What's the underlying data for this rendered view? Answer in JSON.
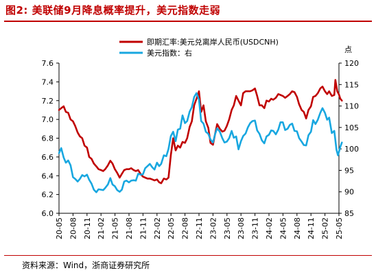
{
  "title": "图2:   美联储9月降息概率提升，美元指数走弱",
  "source": "资料来源：Wind，浙商证券研究所",
  "chart_data": {
    "type": "line",
    "x_tick_labels": [
      "20-05",
      "20-08",
      "20-11",
      "21-02",
      "21-05",
      "21-08",
      "21-11",
      "22-02",
      "22-05",
      "22-08",
      "22-11",
      "23-02",
      "23-05",
      "23-08",
      "23-11",
      "24-02",
      "24-05",
      "24-08",
      "24-11",
      "25-02",
      "25-05"
    ],
    "x_range": [
      "2020-05",
      "2025-05"
    ],
    "ylim_left": [
      6.0,
      7.6
    ],
    "ylim_right": [
      85,
      120
    ],
    "yticks_left": [
      "6.0",
      "6.2",
      "6.4",
      "6.6",
      "6.8",
      "7.0",
      "7.2",
      "7.4",
      "7.6"
    ],
    "yticks_right": [
      "85",
      "90",
      "95",
      "100",
      "105",
      "110",
      "115",
      "120"
    ],
    "right_axis_unit": "点",
    "legend_position": "top-center",
    "grid": false,
    "series": [
      {
        "name": "即期汇率:美元兑离岸人民币(USDCNH)",
        "axis": "left",
        "color": "#c00000",
        "points": [
          [
            "2020-05-01",
            7.1
          ],
          [
            "2020-05-15",
            7.12
          ],
          [
            "2020-05-31",
            7.14
          ],
          [
            "2020-06-15",
            7.08
          ],
          [
            "2020-06-30",
            7.07
          ],
          [
            "2020-07-15",
            7.0
          ],
          [
            "2020-07-31",
            6.98
          ],
          [
            "2020-08-15",
            6.93
          ],
          [
            "2020-08-31",
            6.86
          ],
          [
            "2020-09-15",
            6.82
          ],
          [
            "2020-09-30",
            6.8
          ],
          [
            "2020-10-15",
            6.72
          ],
          [
            "2020-10-31",
            6.7
          ],
          [
            "2020-11-15",
            6.6
          ],
          [
            "2020-11-30",
            6.58
          ],
          [
            "2020-12-15",
            6.53
          ],
          [
            "2020-12-31",
            6.5
          ],
          [
            "2021-01-15",
            6.47
          ],
          [
            "2021-01-31",
            6.46
          ],
          [
            "2021-02-15",
            6.45
          ],
          [
            "2021-02-28",
            6.47
          ],
          [
            "2021-03-15",
            6.51
          ],
          [
            "2021-03-31",
            6.56
          ],
          [
            "2021-04-15",
            6.53
          ],
          [
            "2021-04-30",
            6.47
          ],
          [
            "2021-05-15",
            6.43
          ],
          [
            "2021-05-31",
            6.38
          ],
          [
            "2021-06-15",
            6.42
          ],
          [
            "2021-06-30",
            6.46
          ],
          [
            "2021-07-15",
            6.47
          ],
          [
            "2021-07-31",
            6.47
          ],
          [
            "2021-08-15",
            6.48
          ],
          [
            "2021-08-31",
            6.46
          ],
          [
            "2021-09-15",
            6.45
          ],
          [
            "2021-09-30",
            6.46
          ],
          [
            "2021-10-15",
            6.42
          ],
          [
            "2021-10-31",
            6.39
          ],
          [
            "2021-11-15",
            6.38
          ],
          [
            "2021-11-30",
            6.37
          ],
          [
            "2021-12-15",
            6.37
          ],
          [
            "2021-12-31",
            6.36
          ],
          [
            "2022-01-15",
            6.35
          ],
          [
            "2022-01-31",
            6.36
          ],
          [
            "2022-02-15",
            6.33
          ],
          [
            "2022-02-28",
            6.32
          ],
          [
            "2022-03-15",
            6.37
          ],
          [
            "2022-03-31",
            6.36
          ],
          [
            "2022-04-15",
            6.38
          ],
          [
            "2022-04-30",
            6.62
          ],
          [
            "2022-05-15",
            6.8
          ],
          [
            "2022-05-31",
            6.67
          ],
          [
            "2022-06-15",
            6.72
          ],
          [
            "2022-06-30",
            6.7
          ],
          [
            "2022-07-15",
            6.76
          ],
          [
            "2022-07-31",
            6.75
          ],
          [
            "2022-08-15",
            6.8
          ],
          [
            "2022-08-31",
            6.92
          ],
          [
            "2022-09-15",
            6.98
          ],
          [
            "2022-09-30",
            7.15
          ],
          [
            "2022-10-15",
            7.22
          ],
          [
            "2022-10-31",
            7.3
          ],
          [
            "2022-11-15",
            7.08
          ],
          [
            "2022-11-30",
            7.15
          ],
          [
            "2022-12-15",
            6.98
          ],
          [
            "2022-12-31",
            6.91
          ],
          [
            "2023-01-15",
            6.75
          ],
          [
            "2023-01-31",
            6.73
          ],
          [
            "2023-02-15",
            6.85
          ],
          [
            "2023-02-28",
            6.95
          ],
          [
            "2023-03-15",
            6.9
          ],
          [
            "2023-03-31",
            6.87
          ],
          [
            "2023-04-15",
            6.88
          ],
          [
            "2023-04-30",
            6.93
          ],
          [
            "2023-05-15",
            7.0
          ],
          [
            "2023-05-31",
            7.1
          ],
          [
            "2023-06-15",
            7.15
          ],
          [
            "2023-06-30",
            7.25
          ],
          [
            "2023-07-15",
            7.2
          ],
          [
            "2023-07-31",
            7.15
          ],
          [
            "2023-08-15",
            7.28
          ],
          [
            "2023-08-31",
            7.3
          ],
          [
            "2023-09-15",
            7.3
          ],
          [
            "2023-09-30",
            7.3
          ],
          [
            "2023-10-15",
            7.31
          ],
          [
            "2023-10-31",
            7.33
          ],
          [
            "2023-11-15",
            7.25
          ],
          [
            "2023-11-30",
            7.15
          ],
          [
            "2023-12-15",
            7.15
          ],
          [
            "2023-12-31",
            7.12
          ],
          [
            "2024-01-15",
            7.2
          ],
          [
            "2024-01-31",
            7.19
          ],
          [
            "2024-02-15",
            7.22
          ],
          [
            "2024-02-29",
            7.21
          ],
          [
            "2024-03-15",
            7.23
          ],
          [
            "2024-03-31",
            7.27
          ],
          [
            "2024-04-15",
            7.26
          ],
          [
            "2024-04-30",
            7.25
          ],
          [
            "2024-05-15",
            7.23
          ],
          [
            "2024-05-31",
            7.25
          ],
          [
            "2024-06-15",
            7.27
          ],
          [
            "2024-06-30",
            7.3
          ],
          [
            "2024-07-15",
            7.29
          ],
          [
            "2024-07-31",
            7.24
          ],
          [
            "2024-08-15",
            7.16
          ],
          [
            "2024-08-31",
            7.1
          ],
          [
            "2024-09-15",
            7.08
          ],
          [
            "2024-09-30",
            7.01
          ],
          [
            "2024-10-15",
            7.1
          ],
          [
            "2024-10-31",
            7.14
          ],
          [
            "2024-11-15",
            7.24
          ],
          [
            "2024-11-30",
            7.25
          ],
          [
            "2024-12-15",
            7.28
          ],
          [
            "2024-12-31",
            7.33
          ],
          [
            "2025-01-15",
            7.35
          ],
          [
            "2025-01-31",
            7.3
          ],
          [
            "2025-02-15",
            7.27
          ],
          [
            "2025-02-28",
            7.3
          ],
          [
            "2025-03-15",
            7.25
          ],
          [
            "2025-03-31",
            7.26
          ],
          [
            "2025-04-08",
            7.42
          ],
          [
            "2025-04-20",
            7.3
          ],
          [
            "2025-04-30",
            7.27
          ],
          [
            "2025-05-10",
            7.22
          ],
          [
            "2025-05-20",
            7.2
          ]
        ]
      },
      {
        "name": "美元指数：右",
        "axis": "right",
        "color": "#18a7e0",
        "points": [
          [
            "2020-05-01",
            99.0
          ],
          [
            "2020-05-15",
            100.2
          ],
          [
            "2020-05-31",
            98.0
          ],
          [
            "2020-06-15",
            96.8
          ],
          [
            "2020-06-30",
            97.3
          ],
          [
            "2020-07-15",
            96.2
          ],
          [
            "2020-07-31",
            93.4
          ],
          [
            "2020-08-15",
            93.0
          ],
          [
            "2020-08-31",
            92.4
          ],
          [
            "2020-09-15",
            93.0
          ],
          [
            "2020-09-30",
            93.9
          ],
          [
            "2020-10-15",
            93.6
          ],
          [
            "2020-10-31",
            94.0
          ],
          [
            "2020-11-15",
            92.8
          ],
          [
            "2020-11-30",
            91.9
          ],
          [
            "2020-12-15",
            90.5
          ],
          [
            "2020-12-31",
            89.9
          ],
          [
            "2021-01-15",
            90.6
          ],
          [
            "2021-01-31",
            90.5
          ],
          [
            "2021-02-15",
            90.4
          ],
          [
            "2021-02-28",
            90.9
          ],
          [
            "2021-03-15",
            91.7
          ],
          [
            "2021-03-31",
            93.2
          ],
          [
            "2021-04-15",
            91.7
          ],
          [
            "2021-04-30",
            91.3
          ],
          [
            "2021-05-15",
            90.4
          ],
          [
            "2021-05-31",
            90.0
          ],
          [
            "2021-06-15",
            90.5
          ],
          [
            "2021-06-30",
            92.4
          ],
          [
            "2021-07-15",
            92.6
          ],
          [
            "2021-07-31",
            92.2
          ],
          [
            "2021-08-15",
            92.6
          ],
          [
            "2021-08-31",
            92.7
          ],
          [
            "2021-09-15",
            92.6
          ],
          [
            "2021-09-30",
            94.2
          ],
          [
            "2021-10-15",
            94.0
          ],
          [
            "2021-10-31",
            94.1
          ],
          [
            "2021-11-15",
            95.5
          ],
          [
            "2021-11-30",
            96.0
          ],
          [
            "2021-12-15",
            96.5
          ],
          [
            "2021-12-31",
            95.7
          ],
          [
            "2022-01-15",
            95.2
          ],
          [
            "2022-01-31",
            96.8
          ],
          [
            "2022-02-15",
            96.0
          ],
          [
            "2022-02-28",
            96.5
          ],
          [
            "2022-03-15",
            98.5
          ],
          [
            "2022-03-31",
            98.3
          ],
          [
            "2022-04-15",
            100.0
          ],
          [
            "2022-04-30",
            103.0
          ],
          [
            "2022-05-15",
            104.0
          ],
          [
            "2022-05-31",
            101.8
          ],
          [
            "2022-06-15",
            104.5
          ],
          [
            "2022-06-30",
            104.7
          ],
          [
            "2022-07-15",
            107.8
          ],
          [
            "2022-07-31",
            106.0
          ],
          [
            "2022-08-15",
            106.5
          ],
          [
            "2022-08-31",
            108.7
          ],
          [
            "2022-09-15",
            109.7
          ],
          [
            "2022-09-30",
            112.1
          ],
          [
            "2022-10-15",
            113.0
          ],
          [
            "2022-10-31",
            111.5
          ],
          [
            "2022-11-15",
            106.5
          ],
          [
            "2022-11-30",
            105.9
          ],
          [
            "2022-12-15",
            104.0
          ],
          [
            "2022-12-31",
            103.5
          ],
          [
            "2023-01-15",
            102.2
          ],
          [
            "2023-01-31",
            101.5
          ],
          [
            "2023-02-15",
            103.5
          ],
          [
            "2023-02-28",
            104.8
          ],
          [
            "2023-03-15",
            104.0
          ],
          [
            "2023-03-31",
            102.5
          ],
          [
            "2023-04-15",
            101.5
          ],
          [
            "2023-04-30",
            101.7
          ],
          [
            "2023-05-15",
            102.5
          ],
          [
            "2023-05-31",
            104.2
          ],
          [
            "2023-06-15",
            102.6
          ],
          [
            "2023-06-30",
            102.9
          ],
          [
            "2023-07-15",
            99.9
          ],
          [
            "2023-07-31",
            101.8
          ],
          [
            "2023-08-15",
            103.0
          ],
          [
            "2023-08-31",
            103.6
          ],
          [
            "2023-09-15",
            105.0
          ],
          [
            "2023-09-30",
            106.0
          ],
          [
            "2023-10-15",
            106.5
          ],
          [
            "2023-10-31",
            106.6
          ],
          [
            "2023-11-15",
            104.3
          ],
          [
            "2023-11-30",
            103.5
          ],
          [
            "2023-12-15",
            102.0
          ],
          [
            "2023-12-31",
            101.3
          ],
          [
            "2024-01-15",
            102.9
          ],
          [
            "2024-01-31",
            103.3
          ],
          [
            "2024-02-15",
            104.3
          ],
          [
            "2024-02-29",
            104.2
          ],
          [
            "2024-03-15",
            103.4
          ],
          [
            "2024-03-31",
            104.5
          ],
          [
            "2024-04-15",
            106.2
          ],
          [
            "2024-04-30",
            106.2
          ],
          [
            "2024-05-15",
            104.4
          ],
          [
            "2024-05-31",
            104.7
          ],
          [
            "2024-06-15",
            105.6
          ],
          [
            "2024-06-30",
            105.9
          ],
          [
            "2024-07-15",
            104.2
          ],
          [
            "2024-07-31",
            104.1
          ],
          [
            "2024-08-15",
            102.5
          ],
          [
            "2024-08-31",
            101.7
          ],
          [
            "2024-09-15",
            100.9
          ],
          [
            "2024-09-30",
            100.8
          ],
          [
            "2024-10-15",
            103.2
          ],
          [
            "2024-10-31",
            104.0
          ],
          [
            "2024-11-15",
            106.7
          ],
          [
            "2024-11-30",
            105.8
          ],
          [
            "2024-12-15",
            106.8
          ],
          [
            "2024-12-31",
            108.4
          ],
          [
            "2025-01-15",
            109.5
          ],
          [
            "2025-01-31",
            108.4
          ],
          [
            "2025-02-15",
            106.8
          ],
          [
            "2025-02-28",
            107.3
          ],
          [
            "2025-03-15",
            103.7
          ],
          [
            "2025-03-31",
            104.2
          ],
          [
            "2025-04-15",
            99.8
          ],
          [
            "2025-04-25",
            98.5
          ],
          [
            "2025-05-10",
            100.5
          ],
          [
            "2025-05-20",
            101.5
          ]
        ]
      }
    ]
  }
}
